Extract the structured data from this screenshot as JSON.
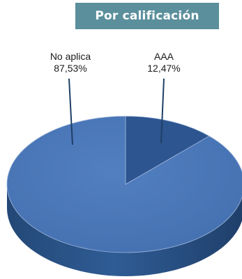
{
  "header": {
    "title": "Por calificación"
  },
  "colors": {
    "header_bg": "#5b8f9c",
    "slice_no_aplica": "#4a74b6",
    "slice_aaa": "#2d5590",
    "leader_line": "#1f3f66"
  },
  "chart_data": {
    "type": "pie",
    "title": "Por calificación",
    "three_d": true,
    "legend": "none",
    "slices": [
      {
        "label": "AAA",
        "value": 12.47,
        "value_text": "12,47%"
      },
      {
        "label": "No aplica",
        "value": 87.53,
        "value_text": "87,53%"
      }
    ]
  }
}
